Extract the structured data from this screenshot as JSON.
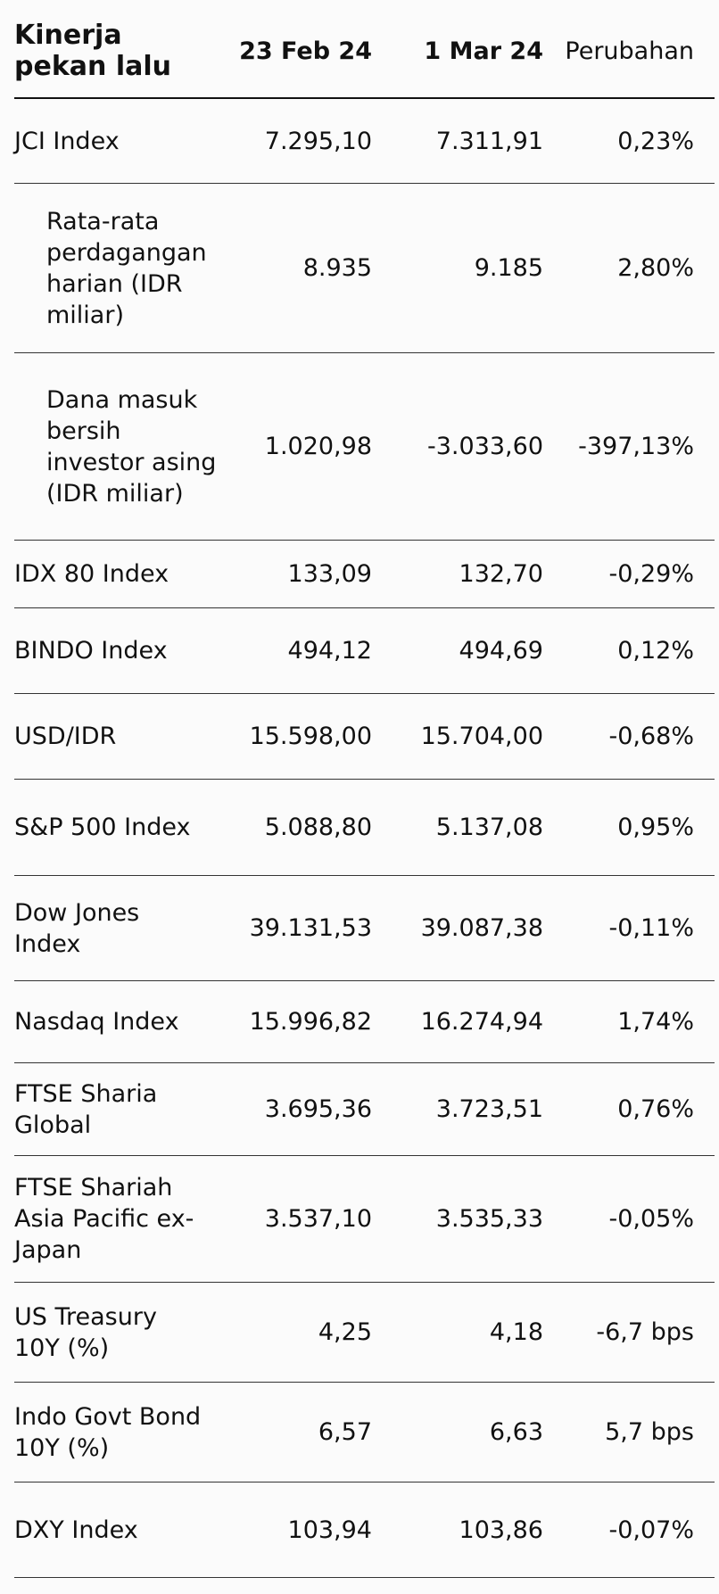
{
  "header": {
    "title": "Kinerja pekan lalu",
    "col1": "23 Feb 24",
    "col2": "1 Mar 24",
    "col3": "Perubahan"
  },
  "rows": [
    {
      "label": "JCI Index",
      "v1": "7.295,10",
      "v2": "7.311,91",
      "v3": "0,23%"
    },
    {
      "label": "Rata-rata perdagangan harian (IDR miliar)",
      "v1": "8.935",
      "v2": "9.185",
      "v3": "2,80%"
    },
    {
      "label": "Dana masuk bersih investor asing (IDR miliar)",
      "v1": "1.020,98",
      "v2": "-3.033,60",
      "v3": "-397,13%"
    },
    {
      "label": "IDX 80 Index",
      "v1": "133,09",
      "v2": "132,70",
      "v3": "-0,29%"
    },
    {
      "label": "BINDO Index",
      "v1": "494,12",
      "v2": "494,69",
      "v3": "0,12%"
    },
    {
      "label": "USD/IDR",
      "v1": "15.598,00",
      "v2": "15.704,00",
      "v3": "-0,68%"
    },
    {
      "label": "S&P 500 Index",
      "v1": "5.088,80",
      "v2": "5.137,08",
      "v3": "0,95%"
    },
    {
      "label": "Dow Jones Index",
      "v1": "39.131,53",
      "v2": "39.087,38",
      "v3": "-0,11%"
    },
    {
      "label": "Nasdaq Index",
      "v1": "15.996,82",
      "v2": "16.274,94",
      "v3": "1,74%"
    },
    {
      "label": "FTSE Sharia Global",
      "v1": "3.695,36",
      "v2": "3.723,51",
      "v3": "0,76%"
    },
    {
      "label": "FTSE Shariah Asia Pacific ex-Japan",
      "v1": "3.537,10",
      "v2": "3.535,33",
      "v3": "-0,05%"
    },
    {
      "label": "US Treasury 10Y (%)",
      "v1": "4,25",
      "v2": "4,18",
      "v3": "-6,7 bps"
    },
    {
      "label": "Indo Govt Bond 10Y (%)",
      "v1": "6,57",
      "v2": "6,63",
      "v3": "5,7 bps"
    },
    {
      "label": "DXY Index",
      "v1": "103,94",
      "v2": "103,86",
      "v3": "-0,07%"
    }
  ]
}
